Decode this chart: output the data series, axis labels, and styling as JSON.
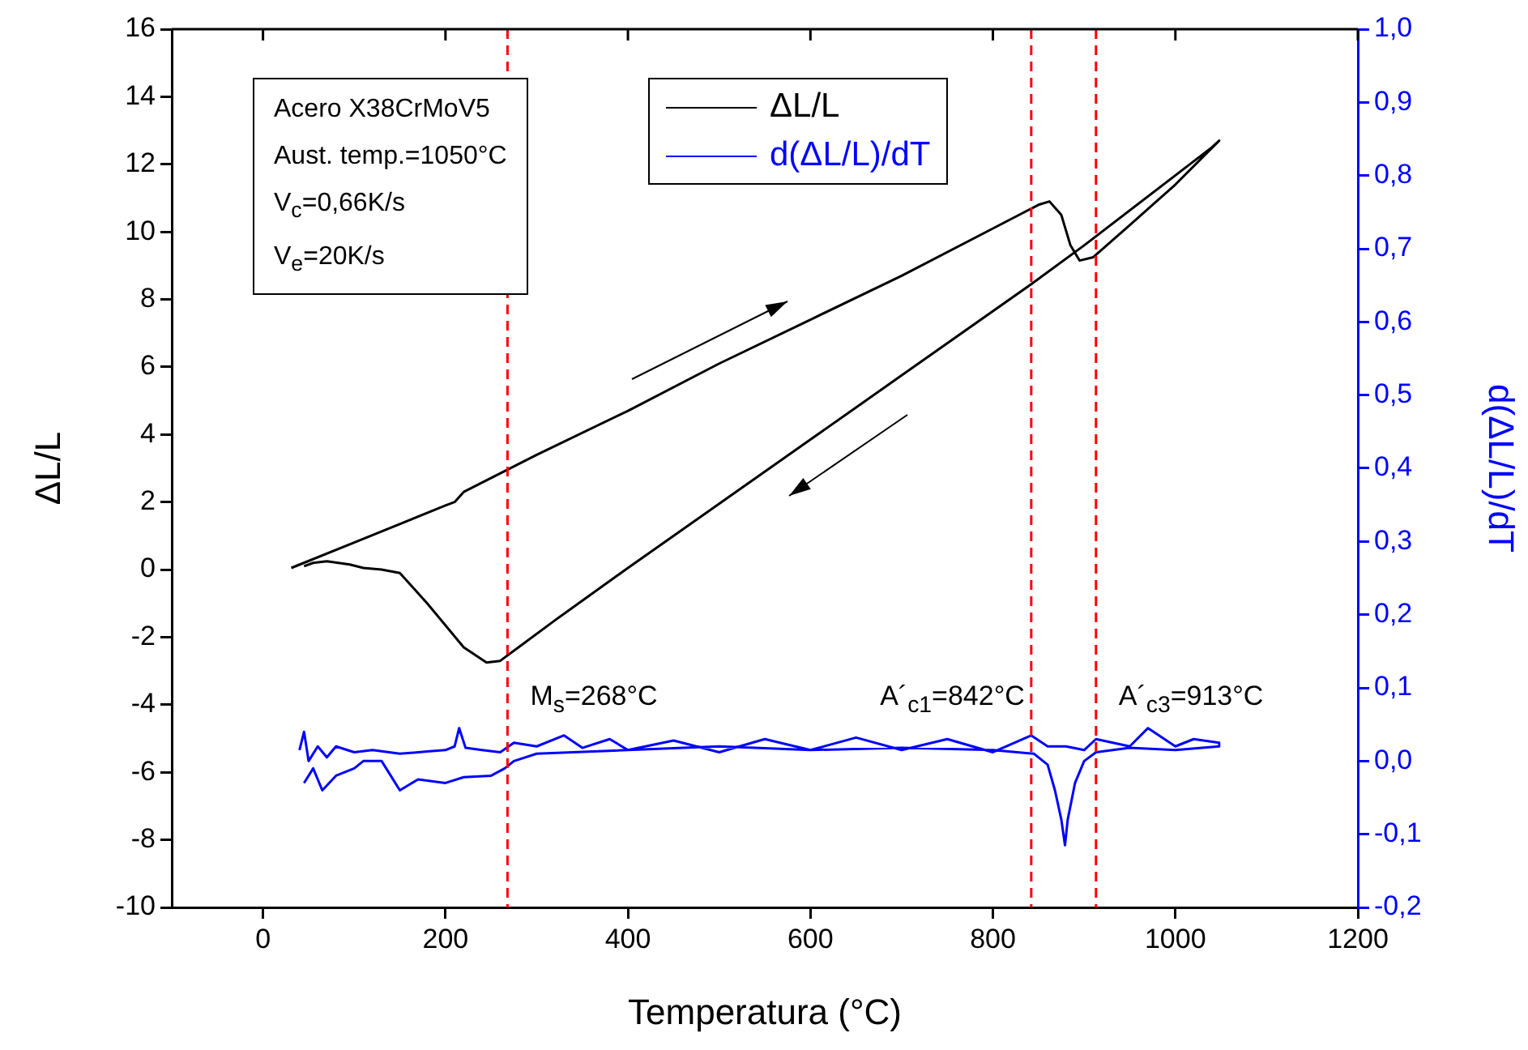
{
  "chart_data": {
    "type": "line",
    "xlabel": "Temperatura (°C)",
    "ylabel": "ΔL/L",
    "y2label": "d(ΔL/L)/dT",
    "xlim": [
      -100,
      1200
    ],
    "xticks": [
      0,
      200,
      400,
      600,
      800,
      1000,
      1200
    ],
    "ylim": [
      -10,
      16
    ],
    "yticks": [
      -10,
      -8,
      -6,
      -4,
      -2,
      0,
      2,
      4,
      6,
      8,
      10,
      12,
      14,
      16
    ],
    "y2lim": [
      -0.2,
      1.0
    ],
    "y2ticks": [
      {
        "value": -0.2,
        "label": "-0,2"
      },
      {
        "value": -0.1,
        "label": "-0,1"
      },
      {
        "value": 0,
        "label": "0,0"
      },
      {
        "value": 0.1,
        "label": "0,1"
      },
      {
        "value": 0.2,
        "label": "0,2"
      },
      {
        "value": 0.3,
        "label": "0,3"
      },
      {
        "value": 0.4,
        "label": "0,4"
      },
      {
        "value": 0.5,
        "label": "0,5"
      },
      {
        "value": 0.6,
        "label": "0,6"
      },
      {
        "value": 0.7,
        "label": "0,7"
      },
      {
        "value": 0.8,
        "label": "0,8"
      },
      {
        "value": 0.9,
        "label": "0,9"
      },
      {
        "value": 1.0,
        "label": "1,0"
      }
    ],
    "legend": "top",
    "marker": "none",
    "line_style": "solid",
    "grid": false,
    "series": [
      {
        "name": "ΔL/L",
        "color": "#000000",
        "x": [
          31,
          100,
          200,
          210,
          220,
          300,
          400,
          500,
          600,
          700,
          800,
          850,
          862,
          875,
          885,
          895,
          910,
          950,
          1000,
          1048,
          1040,
          900,
          842,
          700,
          600,
          500,
          400,
          320,
          280,
          260,
          245,
          220,
          180,
          150,
          130,
          110,
          95,
          70,
          55,
          45
        ],
        "values": [
          0.05,
          0.8,
          1.9,
          2.0,
          2.3,
          3.4,
          4.7,
          6.1,
          7.4,
          8.7,
          10.1,
          10.8,
          10.9,
          10.5,
          9.6,
          9.15,
          9.25,
          10.2,
          11.4,
          12.7,
          12.5,
          9.6,
          8.45,
          5.75,
          3.85,
          1.95,
          0.05,
          -1.5,
          -2.3,
          -2.7,
          -2.75,
          -2.3,
          -1.0,
          -0.1,
          0.0,
          0.05,
          0.15,
          0.25,
          0.2,
          0.1
        ]
      },
      {
        "name": "d(ΔL/L)/dT",
        "color": "#0000ff",
        "axis": "y2",
        "x": [
          40,
          45,
          50,
          60,
          70,
          80,
          100,
          120,
          150,
          180,
          200,
          210,
          215,
          222,
          240,
          260,
          275,
          300,
          330,
          350,
          380,
          400,
          450,
          500,
          550,
          600,
          650,
          700,
          750,
          800,
          842,
          860,
          880,
          900,
          913,
          950,
          970,
          1000,
          1020,
          1048,
          1048,
          1000,
          950,
          913,
          900,
          890,
          882,
          879,
          875,
          868,
          860,
          845,
          800,
          700,
          600,
          500,
          400,
          300,
          275,
          265,
          250,
          220,
          200,
          170,
          150,
          140,
          130,
          110,
          100,
          80,
          65,
          55,
          45
        ],
        "values": [
          0.015,
          0.04,
          0.0,
          0.02,
          0.005,
          0.02,
          0.012,
          0.015,
          0.01,
          0.013,
          0.015,
          0.02,
          0.045,
          0.018,
          0.015,
          0.012,
          0.025,
          0.02,
          0.035,
          0.018,
          0.03,
          0.015,
          0.028,
          0.012,
          0.03,
          0.015,
          0.032,
          0.015,
          0.03,
          0.012,
          0.035,
          0.02,
          0.02,
          0.015,
          0.03,
          0.02,
          0.045,
          0.02,
          0.03,
          0.025,
          0.02,
          0.015,
          0.018,
          0.012,
          0.0,
          -0.03,
          -0.08,
          -0.115,
          -0.08,
          -0.04,
          -0.005,
          0.01,
          0.015,
          0.018,
          0.015,
          0.02,
          0.015,
          0.01,
          0.0,
          -0.01,
          -0.02,
          -0.022,
          -0.03,
          -0.025,
          -0.04,
          -0.02,
          0.0,
          0.0,
          -0.01,
          -0.02,
          -0.04,
          -0.01,
          -0.03
        ]
      }
    ],
    "ref_lines": [
      {
        "axis": "x",
        "value": 268,
        "label": "M$_{s}$=268°C",
        "color": "#ff0000",
        "line_style": "dashed"
      },
      {
        "axis": "x",
        "value": 842,
        "label": "A´$_{c1}$=842°C",
        "color": "#ff0000",
        "line_style": "dashed"
      },
      {
        "axis": "x",
        "value": 913,
        "label": "A´$_{c3}$=913°C",
        "color": "#ff0000",
        "line_style": "dashed"
      }
    ],
    "annotations": [
      "Acero X38CrMoV5",
      "Aust. temp.=1050°C",
      "V$_{c}$=0,66K/s",
      "V$_{e}$=20K/s"
    ]
  }
}
